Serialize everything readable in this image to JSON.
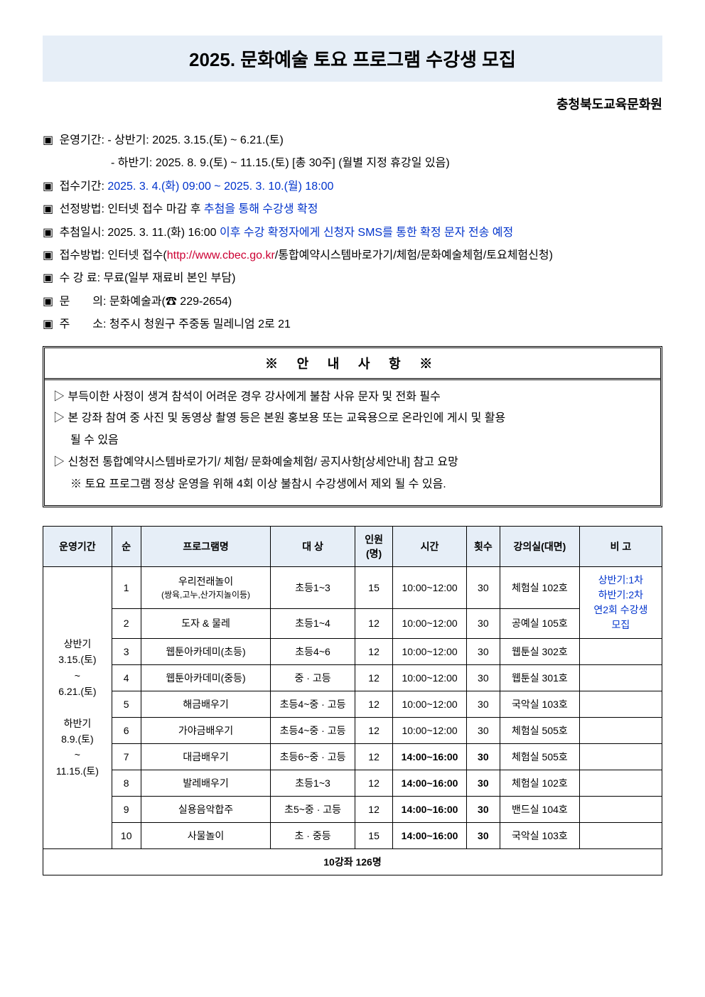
{
  "title": "2025. 문화예술 토요 프로그램 수강생 모집",
  "subtitle": "충청북도교육문화원",
  "info": {
    "bullet": "▣",
    "period_label": "운영기간:",
    "period_line1_prefix": "- 상반기: ",
    "period_line1": "2025. 3.15.(토) ~ 6.21.(토)",
    "period_line2_prefix": "- 하반기: ",
    "period_line2": "2025. 8. 9.(토) ~ 11.15.(토) [총 30주] (월별 지정 휴강일 있음)",
    "apply_label": "접수기간:",
    "apply_value": "2025. 3. 4.(화) 09:00 ~ 2025. 3. 10.(월) 18:00",
    "select_label": "선정방법:",
    "select_pre": "인터넷 접수 마감 후 ",
    "select_blue": "추첨을 통해 수강생 확정",
    "draw_label": "추첨일시:",
    "draw_pre": "2025. 3. 11.(화) 16:00 ",
    "draw_blue": "이후 수강 확정자에게 신청자 SMS를 통한 확정 문자 전송 예정",
    "method_label": "접수방법:",
    "method_pre": "인터넷 접수(",
    "method_link": "http://www.cbec.go.kr",
    "method_post": "/통합예약시스템바로가기/체험/문화예술체험/토요체험신청)",
    "fee_label": "수 강 료:",
    "fee_value": "무료(일부 재료비 본인 부담)",
    "inquiry_label": "문  의:",
    "inquiry_value": "문화예술과(☎ 229-2654)",
    "addr_label": "주  소:",
    "addr_value": "청주시 청원구 주중동 밀레니엄 2로 21"
  },
  "notice": {
    "header": "※ 안 내 사 항 ※",
    "tri": "▷",
    "n1": "부득이한 사정이 생겨 참석이 어려운 경우 강사에게 불참 사유 문자 및 전화 필수",
    "n2a": "본 강좌 참여 중 사진 및 동영상 촬영 등은 본원 홍보용 또는 교육용으로 온라인에 게시 및 활용",
    "n2b": "될 수 있음",
    "n3": "신청전 통합예약시스템바로가기/ 체험/ 문화예술체험/ 공지사항[상세안내] 참고 요망",
    "n4": "※ 토요 프로그램 정상 운영을 위해 4회 이상 불참시 수강생에서 제외 될 수 있음."
  },
  "table": {
    "headers": {
      "period": "운영기간",
      "num": "순",
      "name": "프로그램명",
      "target": "대 상",
      "cap": "인원\n(명)",
      "time": "시간",
      "count": "횟수",
      "room": "강의실(대면)",
      "note": "비 고"
    },
    "period_cell": "상반기\n3.15.(토)\n~\n6.21.(토)\n\n하반기\n8.9.(토)\n~\n11.15.(토)",
    "note_cell": "상반기:1차\n하반기:2차\n연2회 수강생\n모집",
    "rows": [
      {
        "num": "1",
        "name": "우리전래놀이",
        "name_sub": "(쌍육,고누,산가지놀이등)",
        "target": "초등1~3",
        "cap": "15",
        "time": "10:00~12:00",
        "count": "30",
        "room": "체험실 102호",
        "bold": false
      },
      {
        "num": "2",
        "name": "도자 & 물레",
        "name_sub": "",
        "target": "초등1~4",
        "cap": "12",
        "time": "10:00~12:00",
        "count": "30",
        "room": "공예실 105호",
        "bold": false
      },
      {
        "num": "3",
        "name": "웹툰아카데미(초등)",
        "name_sub": "",
        "target": "초등4~6",
        "cap": "12",
        "time": "10:00~12:00",
        "count": "30",
        "room": "웹툰실 302호",
        "bold": false
      },
      {
        "num": "4",
        "name": "웹툰아카데미(중등)",
        "name_sub": "",
        "target": "중 · 고등",
        "cap": "12",
        "time": "10:00~12:00",
        "count": "30",
        "room": "웹툰실 301호",
        "bold": false
      },
      {
        "num": "5",
        "name": "해금배우기",
        "name_sub": "",
        "target": "초등4~중 · 고등",
        "cap": "12",
        "time": "10:00~12:00",
        "count": "30",
        "room": "국악실 103호",
        "bold": false
      },
      {
        "num": "6",
        "name": "가야금배우기",
        "name_sub": "",
        "target": "초등4~중 · 고등",
        "cap": "12",
        "time": "10:00~12:00",
        "count": "30",
        "room": "체험실 505호",
        "bold": false
      },
      {
        "num": "7",
        "name": "대금배우기",
        "name_sub": "",
        "target": "초등6~중 · 고등",
        "cap": "12",
        "time": "14:00~16:00",
        "count": "30",
        "room": "체험실 505호",
        "bold": true
      },
      {
        "num": "8",
        "name": "발레배우기",
        "name_sub": "",
        "target": "초등1~3",
        "cap": "12",
        "time": "14:00~16:00",
        "count": "30",
        "room": "체험실 102호",
        "bold": true
      },
      {
        "num": "9",
        "name": "실용음악합주",
        "name_sub": "",
        "target": "초5~중 · 고등",
        "cap": "12",
        "time": "14:00~16:00",
        "count": "30",
        "room": "밴드실 104호",
        "bold": true
      },
      {
        "num": "10",
        "name": "사물놀이",
        "name_sub": "",
        "target": "초 · 중등",
        "cap": "15",
        "time": "14:00~16:00",
        "count": "30",
        "room": "국악실 103호",
        "bold": true
      }
    ],
    "total": "10강좌 126명"
  }
}
